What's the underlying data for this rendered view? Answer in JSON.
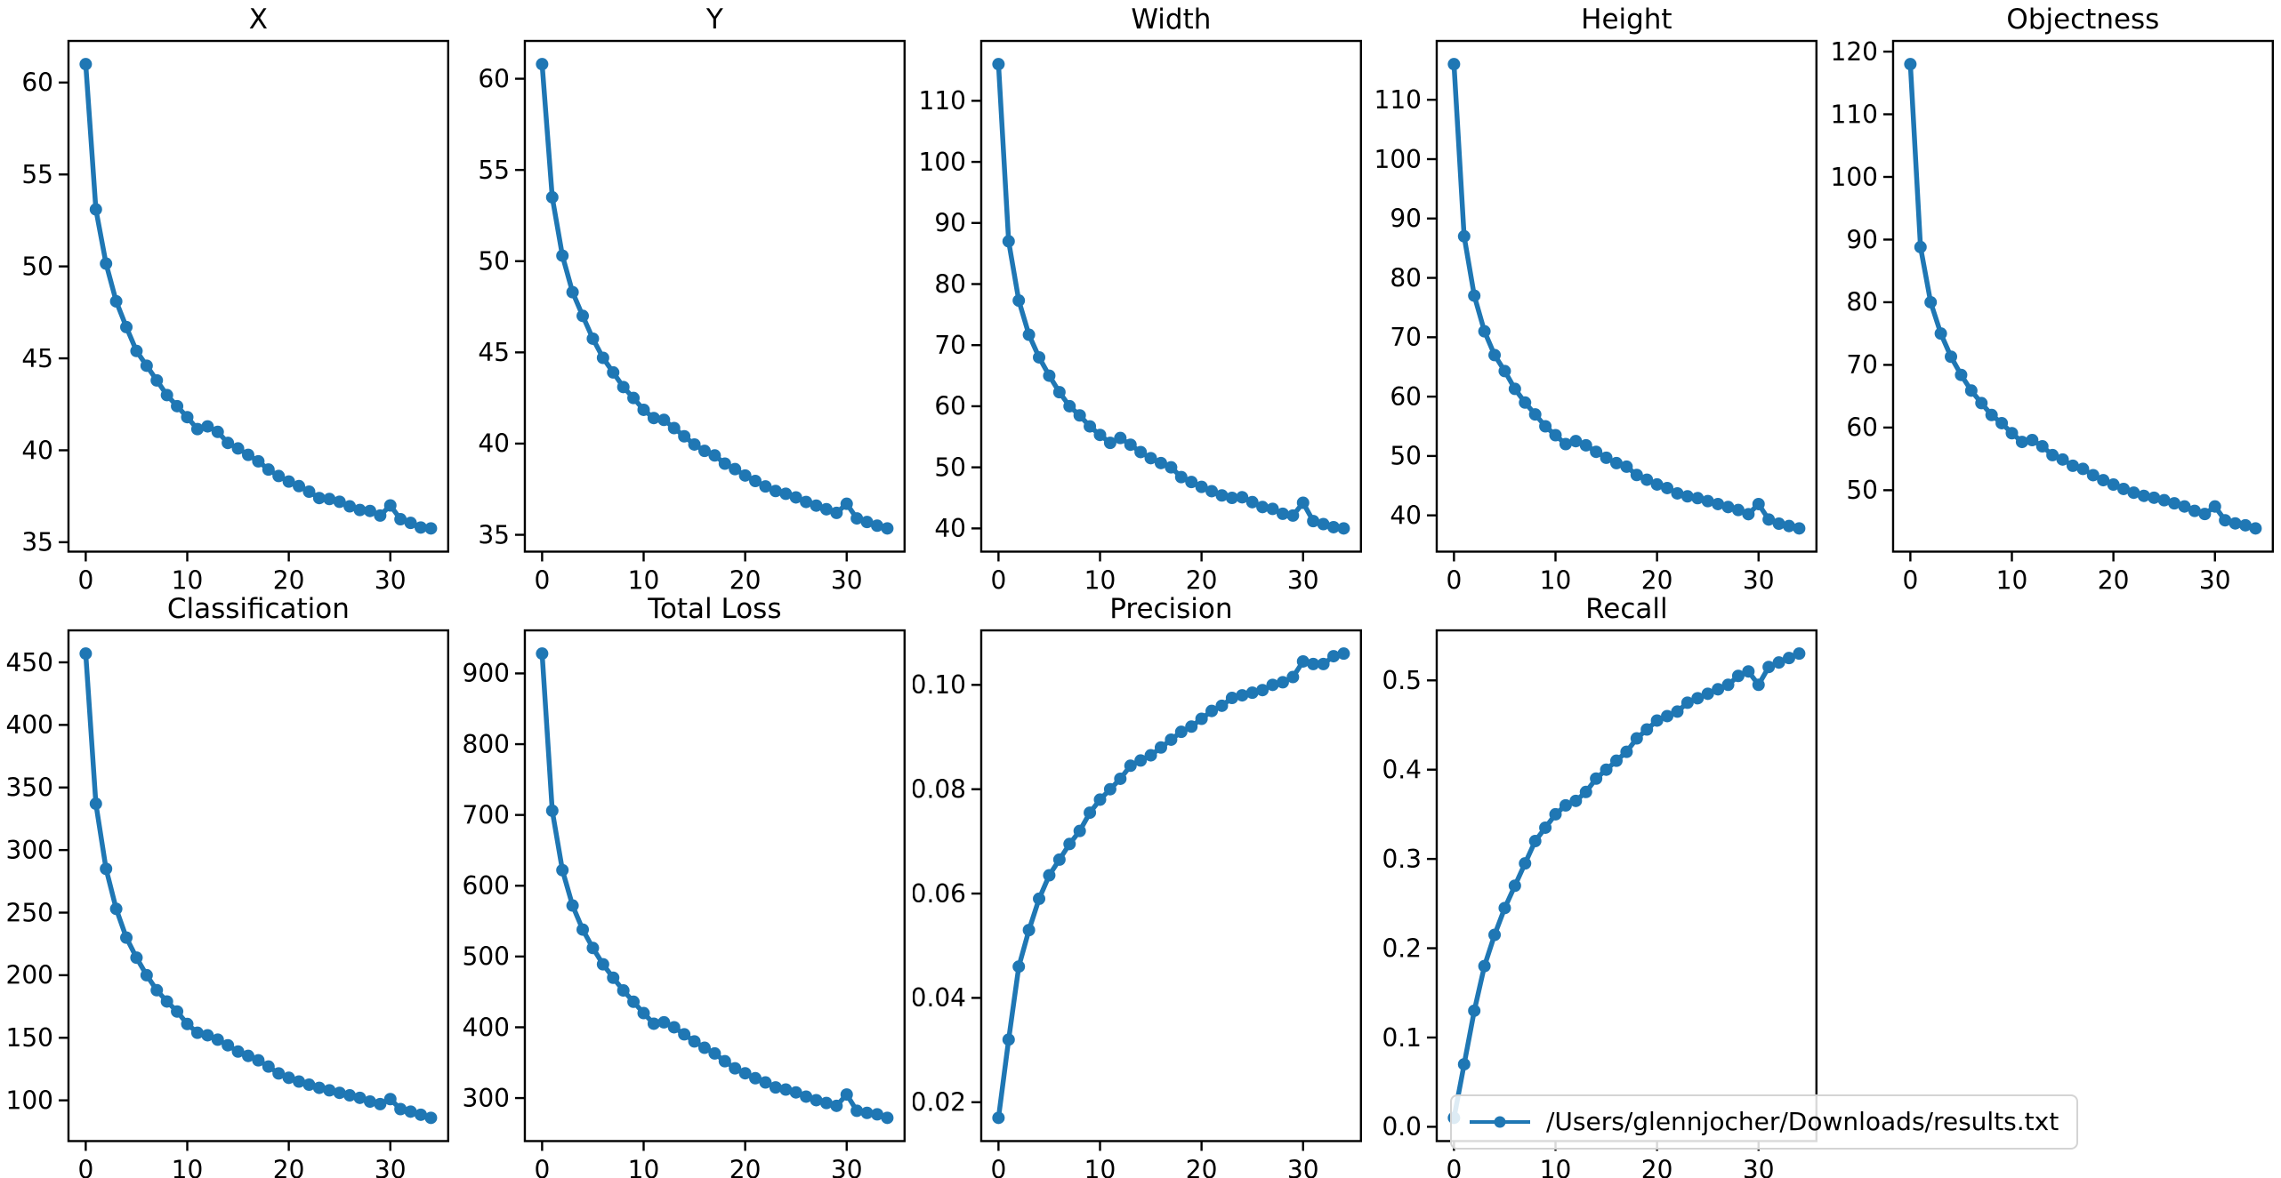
{
  "figure": {
    "background": "#ffffff",
    "text_color": "#000000",
    "spine_color": "#000000"
  },
  "chart_data": {
    "type": "line",
    "series_color": "#1f77b4",
    "marker": "circle",
    "legend_label": "/Users/glennjocher/Downloads/results.txt",
    "legend_position": "lower right, overflowing into empty subplot slot",
    "x_ticks": [
      0,
      10,
      20,
      30
    ],
    "x_tick_labels": [
      "0",
      "10",
      "20",
      "30"
    ],
    "x_range": [
      0,
      34
    ],
    "x_margin": 0.05,
    "y_margin": 0.05,
    "grid": false,
    "subplots": [
      {
        "title": "X",
        "y_ticks": [
          35,
          40,
          45,
          50,
          55,
          60
        ],
        "y_tick_labels": [
          "35",
          "40",
          "45",
          "50",
          "55",
          "60"
        ],
        "values": [
          61.0,
          53.1,
          50.15,
          48.1,
          46.7,
          45.4,
          44.6,
          43.8,
          43.0,
          42.4,
          41.8,
          41.15,
          41.3,
          41.0,
          40.4,
          40.1,
          39.75,
          39.4,
          38.95,
          38.6,
          38.3,
          38.05,
          37.75,
          37.4,
          37.35,
          37.2,
          36.95,
          36.75,
          36.7,
          36.45,
          37.0,
          36.25,
          36.05,
          35.8,
          35.75
        ]
      },
      {
        "title": "Y",
        "y_ticks": [
          35,
          40,
          45,
          50,
          55,
          60
        ],
        "y_tick_labels": [
          "35",
          "40",
          "45",
          "50",
          "55",
          "60"
        ],
        "values": [
          60.8,
          53.5,
          50.3,
          48.3,
          47.0,
          45.75,
          44.7,
          43.9,
          43.1,
          42.5,
          41.85,
          41.4,
          41.3,
          40.85,
          40.4,
          39.95,
          39.6,
          39.35,
          38.9,
          38.6,
          38.25,
          37.95,
          37.65,
          37.4,
          37.25,
          37.05,
          36.8,
          36.6,
          36.4,
          36.2,
          36.7,
          35.9,
          35.7,
          35.5,
          35.35
        ]
      },
      {
        "title": "Width",
        "y_ticks": [
          40,
          50,
          60,
          70,
          80,
          90,
          100,
          110
        ],
        "y_tick_labels": [
          "40",
          "50",
          "60",
          "70",
          "80",
          "90",
          "100",
          "110"
        ],
        "values": [
          116.0,
          87.0,
          77.3,
          71.7,
          68.0,
          65.0,
          62.3,
          60.0,
          58.5,
          56.7,
          55.3,
          54.0,
          54.8,
          53.7,
          52.5,
          51.5,
          50.7,
          50.0,
          48.4,
          47.6,
          46.8,
          46.1,
          45.4,
          45.0,
          45.1,
          44.3,
          43.5,
          43.2,
          42.4,
          42.1,
          44.2,
          41.2,
          40.7,
          40.2,
          40.0
        ]
      },
      {
        "title": "Height",
        "y_ticks": [
          40,
          50,
          60,
          70,
          80,
          90,
          100,
          110
        ],
        "y_tick_labels": [
          "40",
          "50",
          "60",
          "70",
          "80",
          "90",
          "100",
          "110"
        ],
        "values": [
          116.0,
          87.0,
          77.0,
          71.0,
          67.0,
          64.3,
          61.3,
          59.0,
          57.0,
          55.0,
          53.5,
          52.0,
          52.5,
          51.8,
          50.7,
          49.7,
          48.8,
          48.2,
          46.8,
          46.0,
          45.2,
          44.6,
          43.7,
          43.2,
          42.9,
          42.4,
          41.9,
          41.4,
          40.9,
          40.2,
          41.9,
          39.3,
          38.6,
          38.2,
          37.8
        ]
      },
      {
        "title": "Objectness",
        "y_ticks": [
          50,
          60,
          70,
          80,
          90,
          100,
          110,
          120
        ],
        "y_tick_labels": [
          "50",
          "60",
          "70",
          "80",
          "90",
          "100",
          "110",
          "120"
        ],
        "values": [
          118.0,
          88.8,
          80.0,
          75.0,
          71.3,
          68.4,
          65.9,
          63.9,
          62.0,
          60.7,
          59.1,
          57.7,
          58.0,
          57.0,
          55.6,
          54.9,
          53.9,
          53.4,
          52.4,
          51.6,
          50.9,
          50.2,
          49.6,
          49.1,
          48.8,
          48.4,
          47.9,
          47.4,
          46.7,
          46.2,
          47.4,
          45.2,
          44.7,
          44.4,
          43.9
        ]
      },
      {
        "title": "Classification",
        "y_ticks": [
          100,
          150,
          200,
          250,
          300,
          350,
          400,
          450
        ],
        "y_tick_labels": [
          "100",
          "150",
          "200",
          "250",
          "300",
          "350",
          "400",
          "450"
        ],
        "values": [
          457,
          337,
          285,
          253,
          230,
          214,
          200,
          188,
          179,
          171,
          161,
          154,
          152,
          148.5,
          144,
          139,
          135.5,
          132,
          127,
          121.5,
          118,
          115,
          112.5,
          110,
          108,
          106,
          104,
          102,
          99,
          97,
          101,
          93,
          91,
          88.5,
          86
        ]
      },
      {
        "title": "Total Loss",
        "y_ticks": [
          300,
          400,
          500,
          600,
          700,
          800,
          900
        ],
        "y_tick_labels": [
          "300",
          "400",
          "500",
          "600",
          "700",
          "800",
          "900"
        ],
        "values": [
          928,
          706,
          622,
          572,
          538,
          512,
          489,
          470,
          452,
          436,
          420,
          405,
          407,
          400,
          390,
          380,
          371,
          363,
          352,
          342,
          335,
          328,
          322,
          315,
          312,
          308,
          302,
          297,
          293,
          289,
          305,
          282,
          279,
          277,
          272
        ]
      },
      {
        "title": "Precision",
        "y_ticks": [
          0.02,
          0.04,
          0.06,
          0.08,
          0.1
        ],
        "y_tick_labels": [
          "0.02",
          "0.04",
          "0.06",
          "0.08",
          "0.10"
        ],
        "values": [
          0.017,
          0.032,
          0.046,
          0.053,
          0.059,
          0.0635,
          0.0665,
          0.0695,
          0.072,
          0.0755,
          0.078,
          0.08,
          0.082,
          0.0845,
          0.0855,
          0.0865,
          0.088,
          0.0895,
          0.091,
          0.092,
          0.0935,
          0.095,
          0.096,
          0.0975,
          0.098,
          0.0985,
          0.099,
          0.1,
          0.1005,
          0.1015,
          0.1045,
          0.104,
          0.104,
          0.1055,
          0.106
        ]
      },
      {
        "title": "Recall",
        "y_ticks": [
          0.0,
          0.1,
          0.2,
          0.3,
          0.4,
          0.5
        ],
        "y_tick_labels": [
          "0.0",
          "0.1",
          "0.2",
          "0.3",
          "0.4",
          "0.5"
        ],
        "values": [
          0.01,
          0.07,
          0.13,
          0.18,
          0.215,
          0.245,
          0.27,
          0.295,
          0.32,
          0.335,
          0.35,
          0.36,
          0.365,
          0.375,
          0.39,
          0.4,
          0.41,
          0.42,
          0.435,
          0.445,
          0.455,
          0.46,
          0.465,
          0.475,
          0.48,
          0.485,
          0.49,
          0.495,
          0.505,
          0.51,
          0.495,
          0.515,
          0.52,
          0.525,
          0.53
        ]
      }
    ]
  }
}
